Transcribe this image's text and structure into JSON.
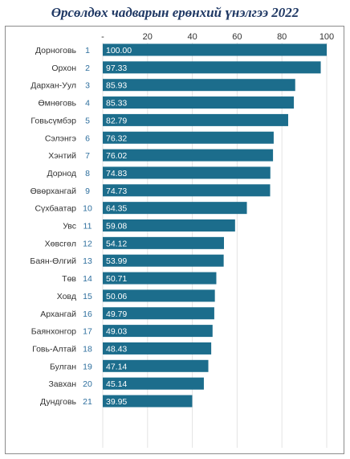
{
  "title": "Өрсөлдөх чадварын ерөнхий үнэлгээ 2022",
  "chart_data": {
    "type": "bar",
    "orientation": "horizontal",
    "title": "Өрсөлдөх чадварын ерөнхий үнэлгээ 2022",
    "categories": [
      "Дорноговь",
      "Орхон",
      "Дархан-Уул",
      "Өмнөговь",
      "Говьсүмбэр",
      "Сэлэнгэ",
      "Хэнтий",
      "Дорнод",
      "Өвөрхангай",
      "Сүхбаатар",
      "Увс",
      "Хөвсгөл",
      "Баян-Өлгий",
      "Төв",
      "Ховд",
      "Архангай",
      "Баянхонгор",
      "Говь-Алтай",
      "Булган",
      "Завхан",
      "Дундговь"
    ],
    "ranks": [
      "1",
      "2",
      "3",
      "4",
      "5",
      "6",
      "7",
      "8",
      "9",
      "10",
      "11",
      "12",
      "13",
      "14",
      "15",
      "16",
      "17",
      "18",
      "19",
      "20",
      "21"
    ],
    "values": [
      100.0,
      97.33,
      85.93,
      85.33,
      82.79,
      76.32,
      76.02,
      74.83,
      74.73,
      64.35,
      59.08,
      54.12,
      53.99,
      50.71,
      50.06,
      49.79,
      49.03,
      48.43,
      47.14,
      45.14,
      39.95
    ],
    "value_labels": [
      "100.00",
      "97.33",
      "85.93",
      "85.33",
      "82.79",
      "76.32",
      "76.02",
      "74.83",
      "74.73",
      "64.35",
      "59.08",
      "54.12",
      "53.99",
      "50.71",
      "50.06",
      "49.79",
      "49.03",
      "48.43",
      "47.14",
      "45.14",
      "39.95"
    ],
    "x_ticks": [
      "-",
      "20",
      "40",
      "60",
      "80",
      "100"
    ],
    "xlim": [
      0,
      100
    ],
    "grid": true,
    "colors": {
      "bar": "#1c6d8c",
      "rank": "#2e6f9e",
      "title": "#1f3864",
      "grid": "#e3e3e3",
      "text": "#333333"
    }
  }
}
